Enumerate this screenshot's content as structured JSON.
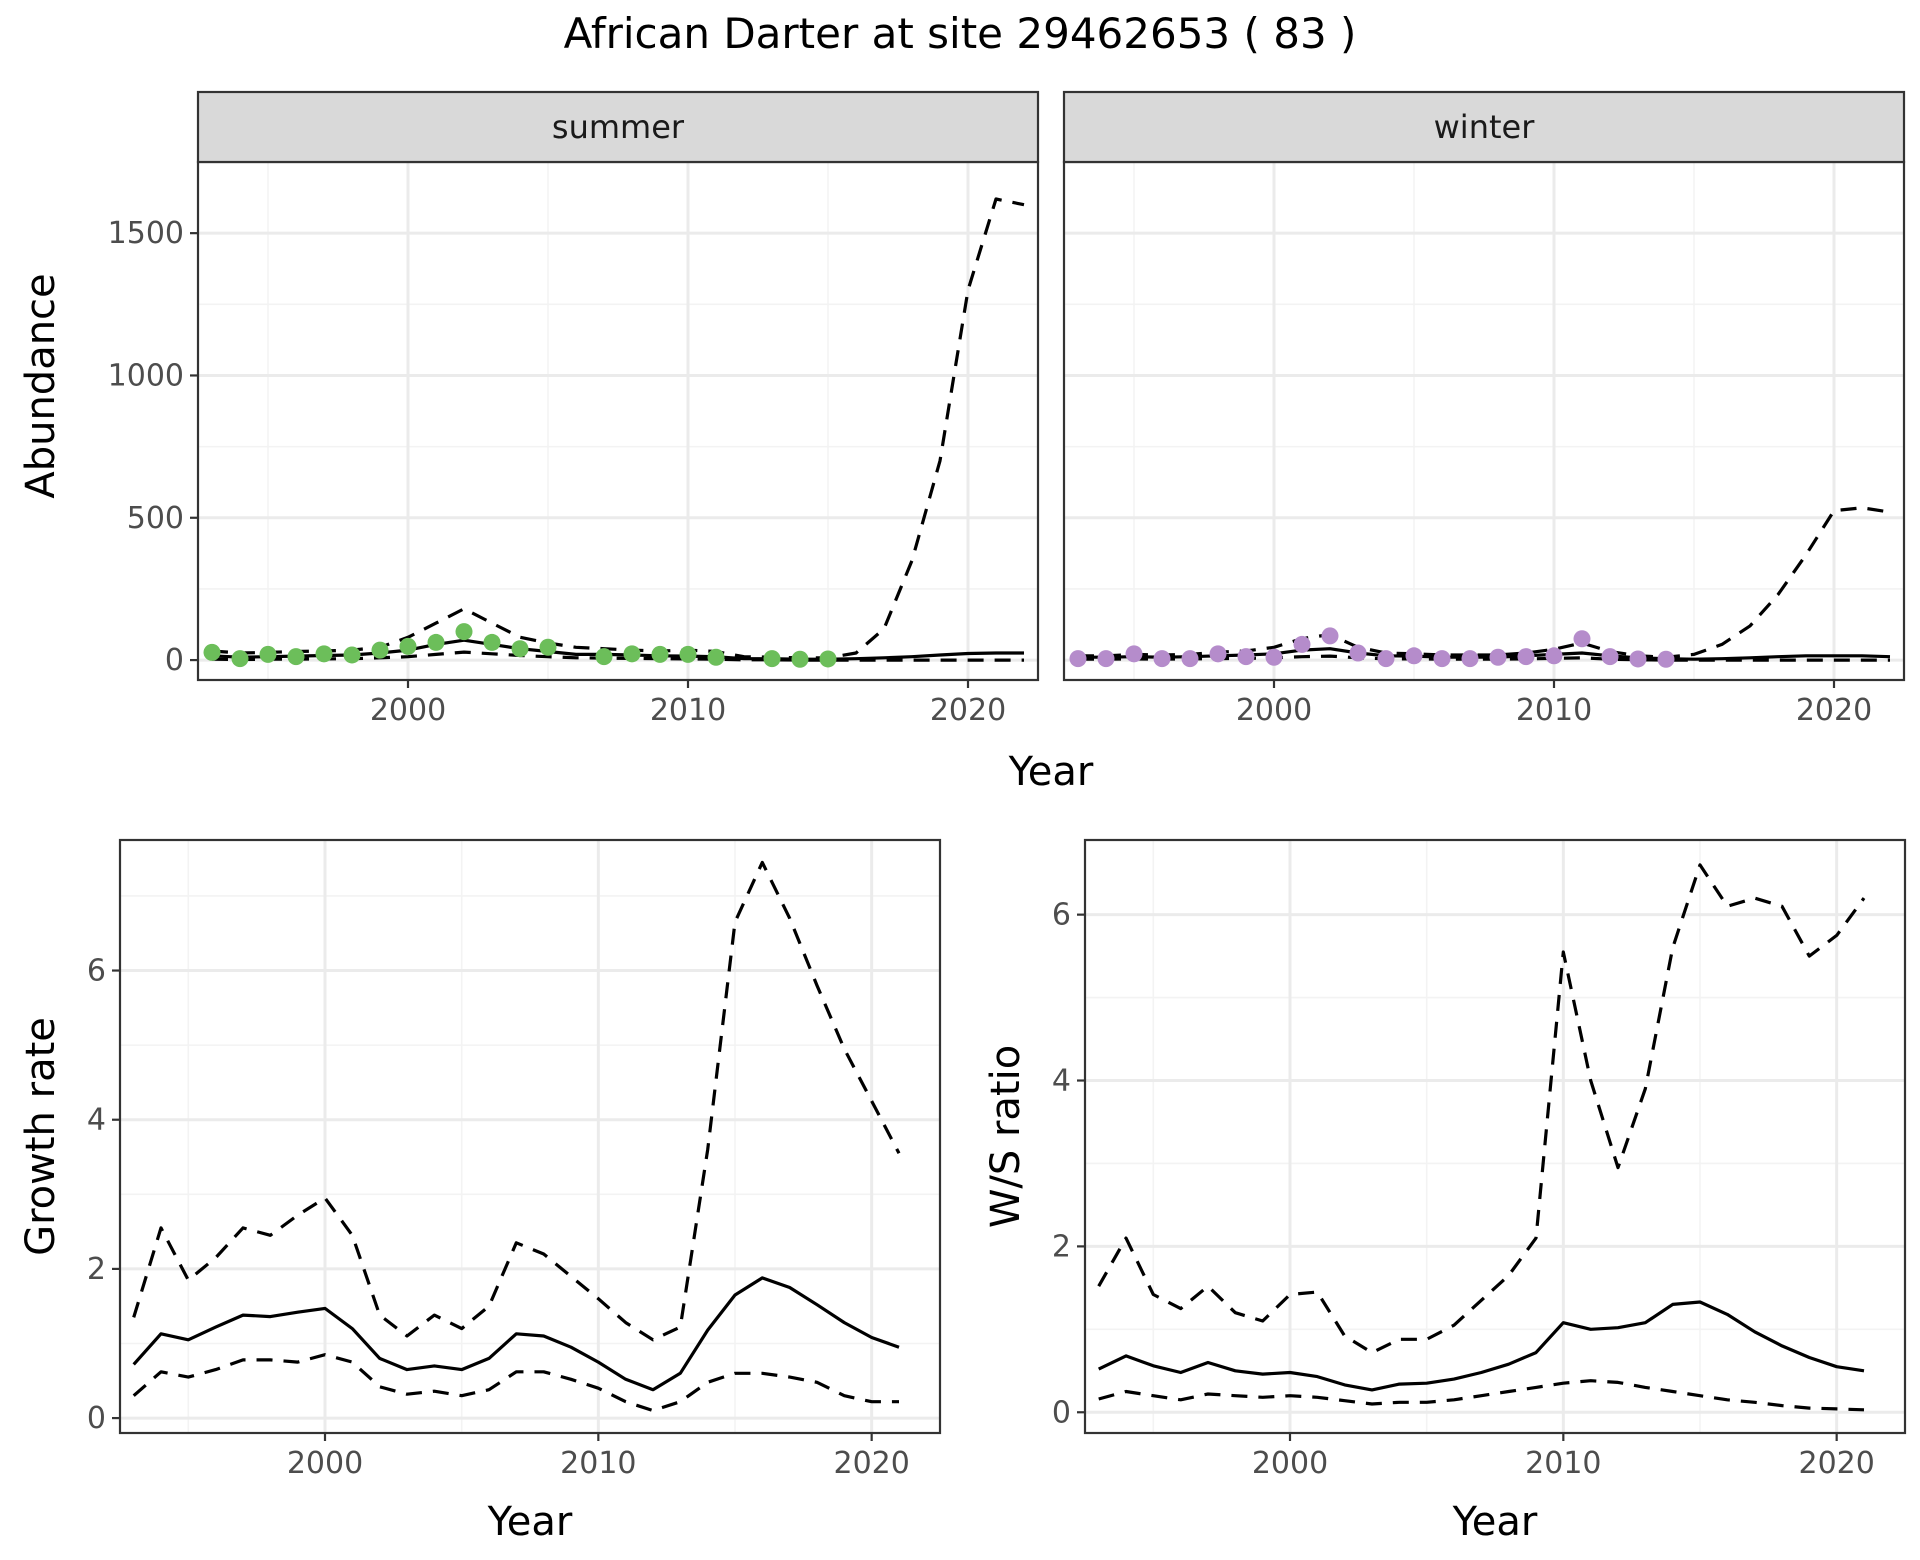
{
  "title": "African Darter at site 29462653 ( 83 )",
  "colors": {
    "summer_points": "#6cbe5a",
    "winter_points": "#b58ccb",
    "lines": "#000000",
    "strip": "#d9d9d9"
  },
  "chart_data": [
    {
      "type": "line",
      "facet": "summer",
      "xlabel": "Year",
      "ylabel": "Abundance",
      "xlim": [
        1992.5,
        2022.5
      ],
      "ylim": [
        -70,
        1750
      ],
      "x_ticks": [
        2000,
        2010,
        2020
      ],
      "y_ticks": [
        0,
        500,
        1000,
        1500
      ],
      "grid": true,
      "points": {
        "x": [
          1993,
          1994,
          1995,
          1996,
          1997,
          1998,
          1999,
          2000,
          2001,
          2002,
          2003,
          2004,
          2005,
          2007,
          2008,
          2009,
          2010,
          2011,
          2013,
          2014,
          2015
        ],
        "y": [
          27,
          5,
          20,
          12,
          22,
          18,
          35,
          48,
          62,
          100,
          62,
          40,
          45,
          12,
          22,
          20,
          20,
          10,
          5,
          3,
          4
        ]
      },
      "series": [
        {
          "style": "solid",
          "x": [
            1993,
            1994,
            1995,
            1996,
            1997,
            1998,
            1999,
            2000,
            2001,
            2002,
            2003,
            2004,
            2005,
            2006,
            2007,
            2008,
            2009,
            2010,
            2011,
            2012,
            2013,
            2014,
            2015,
            2016,
            2017,
            2018,
            2019,
            2020,
            2021,
            2022
          ],
          "values": [
            15,
            10,
            12,
            14,
            16,
            18,
            25,
            35,
            55,
            70,
            55,
            40,
            30,
            20,
            20,
            18,
            15,
            14,
            12,
            5,
            5,
            3,
            3,
            5,
            8,
            12,
            18,
            23,
            25,
            25
          ]
        },
        {
          "style": "dashed",
          "x": [
            1993,
            1994,
            1995,
            1996,
            1997,
            1998,
            1999,
            2000,
            2001,
            2002,
            2003,
            2004,
            2005,
            2006,
            2007,
            2008,
            2009,
            2010,
            2011,
            2012,
            2013,
            2014,
            2015,
            2016,
            2017,
            2018,
            2019,
            2020,
            2021,
            2022
          ],
          "values": [
            32,
            25,
            27,
            30,
            32,
            35,
            45,
            80,
            130,
            180,
            130,
            80,
            60,
            45,
            40,
            35,
            32,
            35,
            30,
            12,
            10,
            8,
            8,
            25,
            110,
            350,
            700,
            1300,
            1620,
            1600
          ]
        },
        {
          "style": "dashed",
          "x": [
            1993,
            1994,
            1995,
            1996,
            1997,
            1998,
            1999,
            2000,
            2001,
            2002,
            2003,
            2004,
            2005,
            2006,
            2007,
            2008,
            2009,
            2010,
            2011,
            2012,
            2013,
            2014,
            2015,
            2016,
            2017,
            2018,
            2019,
            2020,
            2021,
            2022
          ],
          "values": [
            3,
            2,
            3,
            3,
            4,
            5,
            8,
            12,
            20,
            28,
            22,
            16,
            12,
            8,
            7,
            6,
            5,
            4,
            3,
            1,
            1,
            0,
            0,
            0,
            0,
            0,
            0,
            0,
            0,
            0
          ]
        }
      ]
    },
    {
      "type": "line",
      "facet": "winter",
      "xlabel": "Year",
      "ylabel": "Abundance",
      "xlim": [
        1992.5,
        2022.5
      ],
      "ylim": [
        -70,
        1750
      ],
      "x_ticks": [
        2000,
        2010,
        2020
      ],
      "y_ticks": [
        0,
        500,
        1000,
        1500
      ],
      "grid": true,
      "points": {
        "x": [
          1993,
          1994,
          1995,
          1996,
          1997,
          1998,
          1999,
          2000,
          2001,
          2002,
          2003,
          2004,
          2005,
          2006,
          2007,
          2008,
          2009,
          2010,
          2011,
          2012,
          2013,
          2014
        ],
        "y": [
          5,
          5,
          22,
          5,
          5,
          22,
          12,
          10,
          55,
          85,
          25,
          5,
          15,
          5,
          5,
          10,
          12,
          15,
          75,
          12,
          4,
          3
        ]
      },
      "series": [
        {
          "style": "solid",
          "x": [
            1993,
            1994,
            1995,
            1996,
            1997,
            1998,
            1999,
            2000,
            2001,
            2002,
            2003,
            2004,
            2005,
            2006,
            2007,
            2008,
            2009,
            2010,
            2011,
            2012,
            2013,
            2014,
            2015,
            2016,
            2017,
            2018,
            2019,
            2020,
            2021,
            2022
          ],
          "values": [
            10,
            10,
            12,
            10,
            12,
            15,
            18,
            22,
            35,
            40,
            25,
            15,
            14,
            10,
            10,
            10,
            15,
            20,
            25,
            15,
            8,
            5,
            3,
            5,
            8,
            12,
            15,
            15,
            15,
            12
          ]
        },
        {
          "style": "dashed",
          "x": [
            1993,
            1994,
            1995,
            1996,
            1997,
            1998,
            1999,
            2000,
            2001,
            2002,
            2003,
            2004,
            2005,
            2006,
            2007,
            2008,
            2009,
            2010,
            2011,
            2012,
            2013,
            2014,
            2015,
            2016,
            2017,
            2018,
            2019,
            2020,
            2021,
            2022
          ],
          "values": [
            15,
            15,
            20,
            18,
            20,
            28,
            32,
            45,
            75,
            90,
            45,
            25,
            22,
            18,
            18,
            18,
            25,
            38,
            60,
            30,
            15,
            10,
            20,
            55,
            120,
            230,
            370,
            525,
            535,
            520
          ]
        },
        {
          "style": "dashed",
          "x": [
            1993,
            1994,
            1995,
            1996,
            1997,
            1998,
            1999,
            2000,
            2001,
            2002,
            2003,
            2004,
            2005,
            2006,
            2007,
            2008,
            2009,
            2010,
            2011,
            2012,
            2013,
            2014,
            2015,
            2016,
            2017,
            2018,
            2019,
            2020,
            2021,
            2022
          ],
          "values": [
            3,
            3,
            4,
            3,
            4,
            5,
            6,
            8,
            12,
            14,
            8,
            4,
            4,
            3,
            3,
            3,
            4,
            6,
            8,
            3,
            1,
            0,
            0,
            0,
            0,
            0,
            0,
            0,
            0,
            0
          ]
        }
      ]
    },
    {
      "type": "line",
      "xlabel": "Year",
      "ylabel": "Growth rate",
      "xlim": [
        1992.5,
        2022.5
      ],
      "ylim": [
        -0.2,
        7.75
      ],
      "x_ticks": [
        2000,
        2010,
        2020
      ],
      "y_ticks": [
        0,
        2,
        4,
        6
      ],
      "grid": true,
      "series": [
        {
          "style": "solid",
          "x": [
            1993,
            1994,
            1995,
            1996,
            1997,
            1998,
            1999,
            2000,
            2001,
            2002,
            2003,
            2004,
            2005,
            2006,
            2007,
            2008,
            2009,
            2010,
            2011,
            2012,
            2013,
            2014,
            2015,
            2016,
            2017,
            2018,
            2019,
            2020,
            2021
          ],
          "values": [
            0.72,
            1.13,
            1.05,
            1.22,
            1.38,
            1.36,
            1.42,
            1.47,
            1.2,
            0.8,
            0.65,
            0.7,
            0.65,
            0.8,
            1.13,
            1.1,
            0.95,
            0.75,
            0.52,
            0.38,
            0.6,
            1.18,
            1.65,
            1.88,
            1.75,
            1.52,
            1.28,
            1.08,
            0.95
          ]
        },
        {
          "style": "dashed",
          "x": [
            1993,
            1994,
            1995,
            1996,
            1997,
            1998,
            1999,
            2000,
            2001,
            2002,
            2003,
            2004,
            2005,
            2006,
            2007,
            2008,
            2009,
            2010,
            2011,
            2012,
            2013,
            2014,
            2015,
            2016,
            2017,
            2018,
            2019,
            2020,
            2021
          ],
          "values": [
            1.35,
            2.55,
            1.85,
            2.15,
            2.55,
            2.45,
            2.72,
            2.95,
            2.45,
            1.38,
            1.1,
            1.38,
            1.2,
            1.5,
            2.35,
            2.2,
            1.9,
            1.6,
            1.28,
            1.05,
            1.22,
            3.6,
            6.65,
            7.45,
            6.7,
            5.8,
            4.95,
            4.25,
            3.55
          ]
        },
        {
          "style": "dashed",
          "x": [
            1993,
            1994,
            1995,
            1996,
            1997,
            1998,
            1999,
            2000,
            2001,
            2002,
            2003,
            2004,
            2005,
            2006,
            2007,
            2008,
            2009,
            2010,
            2011,
            2012,
            2013,
            2014,
            2015,
            2016,
            2017,
            2018,
            2019,
            2020,
            2021
          ],
          "values": [
            0.3,
            0.62,
            0.55,
            0.65,
            0.78,
            0.78,
            0.75,
            0.85,
            0.75,
            0.42,
            0.32,
            0.36,
            0.3,
            0.38,
            0.62,
            0.62,
            0.52,
            0.4,
            0.22,
            0.1,
            0.22,
            0.48,
            0.6,
            0.6,
            0.55,
            0.48,
            0.3,
            0.22,
            0.22
          ]
        }
      ]
    },
    {
      "type": "line",
      "xlabel": "Year",
      "ylabel": "W/S ratio",
      "xlim": [
        1992.5,
        2022.5
      ],
      "ylim": [
        -0.25,
        6.9
      ],
      "x_ticks": [
        2000,
        2010,
        2020
      ],
      "y_ticks": [
        0,
        2,
        4,
        6
      ],
      "grid": true,
      "series": [
        {
          "style": "solid",
          "x": [
            1993,
            1994,
            1995,
            1996,
            1997,
            1998,
            1999,
            2000,
            2001,
            2002,
            2003,
            2004,
            2005,
            2006,
            2007,
            2008,
            2009,
            2010,
            2011,
            2012,
            2013,
            2014,
            2015,
            2016,
            2017,
            2018,
            2019,
            2020,
            2021
          ],
          "values": [
            0.52,
            0.68,
            0.56,
            0.48,
            0.6,
            0.5,
            0.46,
            0.48,
            0.43,
            0.33,
            0.27,
            0.34,
            0.35,
            0.4,
            0.48,
            0.58,
            0.72,
            1.08,
            1.0,
            1.02,
            1.08,
            1.3,
            1.33,
            1.18,
            0.97,
            0.8,
            0.66,
            0.55,
            0.5
          ]
        },
        {
          "style": "dashed",
          "x": [
            1993,
            1994,
            1995,
            1996,
            1997,
            1998,
            1999,
            2000,
            2001,
            2002,
            2003,
            2004,
            2005,
            2006,
            2007,
            2008,
            2009,
            2010,
            2011,
            2012,
            2013,
            2014,
            2015,
            2016,
            2017,
            2018,
            2019,
            2020,
            2021
          ],
          "values": [
            1.52,
            2.1,
            1.42,
            1.25,
            1.52,
            1.2,
            1.1,
            1.42,
            1.45,
            0.92,
            0.72,
            0.88,
            0.88,
            1.05,
            1.35,
            1.65,
            2.1,
            5.55,
            4.0,
            2.95,
            3.9,
            5.6,
            6.6,
            6.1,
            6.2,
            6.1,
            5.5,
            5.75,
            6.2
          ]
        },
        {
          "style": "dashed",
          "x": [
            1993,
            1994,
            1995,
            1996,
            1997,
            1998,
            1999,
            2000,
            2001,
            2002,
            2003,
            2004,
            2005,
            2006,
            2007,
            2008,
            2009,
            2010,
            2011,
            2012,
            2013,
            2014,
            2015,
            2016,
            2017,
            2018,
            2019,
            2020,
            2021
          ],
          "values": [
            0.16,
            0.25,
            0.2,
            0.15,
            0.22,
            0.2,
            0.18,
            0.2,
            0.18,
            0.14,
            0.1,
            0.12,
            0.12,
            0.15,
            0.2,
            0.25,
            0.3,
            0.35,
            0.38,
            0.36,
            0.3,
            0.25,
            0.2,
            0.15,
            0.12,
            0.08,
            0.05,
            0.04,
            0.03
          ]
        }
      ]
    }
  ]
}
